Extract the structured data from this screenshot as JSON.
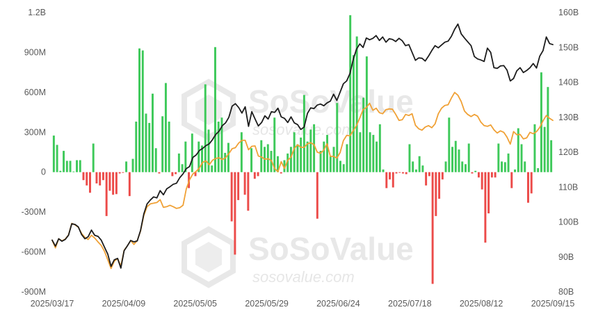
{
  "chart_data": {
    "type": "bar+line",
    "x_tick_labels": [
      "2025/03/17",
      "2025/04/09",
      "2025/05/05",
      "2025/05/29",
      "2025/06/24",
      "2025/07/18",
      "2025/08/12",
      "2025/09/15"
    ],
    "left_axis": {
      "ylim": [
        -900000000,
        1200000000
      ],
      "tick_labels": [
        "1.2B",
        "900M",
        "600M",
        "300M",
        "0",
        "-300M",
        "-600M",
        "-900M"
      ]
    },
    "right_axis": {
      "ylim": [
        80,
        160
      ],
      "tick_labels": [
        "160B",
        "150B",
        "140B",
        "130B",
        "120B",
        "110B",
        "100B",
        "90B",
        "80B"
      ]
    },
    "colors": {
      "positive_bar": "#3ec95a",
      "negative_bar": "#ec4b49",
      "line_black": "#1c1c1c",
      "line_orange": "#f0a136",
      "watermark": "#d6d6d6"
    },
    "watermark": {
      "brand": "SoSoValue",
      "url": "sosovalue.com"
    },
    "bars_millions": [
      275,
      205,
      10,
      160,
      85,
      85,
      5,
      90,
      90,
      -60,
      -100,
      -155,
      215,
      -85,
      -100,
      -60,
      -330,
      -140,
      -170,
      -165,
      -10,
      -5,
      80,
      -180,
      100,
      380,
      930,
      915,
      440,
      370,
      590,
      180,
      -10,
      420,
      670,
      380,
      -30,
      -15,
      140,
      60,
      230,
      -120,
      290,
      -30,
      230,
      200,
      660,
      320,
      50,
      940,
      380,
      410,
      145,
      220,
      -370,
      -620,
      -210,
      300,
      -170,
      -290,
      180,
      -50,
      -30,
      240,
      190,
      210,
      160,
      410,
      120,
      -10,
      90,
      140,
      190,
      300,
      210,
      260,
      580,
      230,
      320,
      360,
      -350,
      160,
      230,
      280,
      120,
      190,
      520,
      85,
      60,
      210,
      1180,
      880,
      1020,
      300,
      560,
      870,
      300,
      280,
      230,
      360,
      20,
      -120,
      -55,
      -115,
      -10,
      -5,
      -10,
      -15,
      210,
      80,
      20,
      120,
      50,
      -100,
      -30,
      -840,
      -330,
      -200,
      -55,
      80,
      410,
      190,
      235,
      170,
      80,
      60,
      215,
      -10,
      10,
      -40,
      -130,
      -530,
      -310,
      -40,
      -40,
      215,
      80,
      75,
      140,
      -120,
      20,
      330,
      210,
      80,
      -230,
      -160,
      360,
      30,
      750,
      340,
      640,
      240
    ],
    "series": [
      {
        "name": "",
        "color": "#1c1c1c",
        "unit": "B",
        "values": [
          94.8,
          93.1,
          95.2,
          94.5,
          95.0,
          96.2,
          99.5,
          99.3,
          98.6,
          96.4,
          95.2,
          95.8,
          97.7,
          96.2,
          95.9,
          94.8,
          92.8,
          90.8,
          87.3,
          89.2,
          89.6,
          86.8,
          91.8,
          93.2,
          94.7,
          94.3,
          94.6,
          97.6,
          102.3,
          105.2,
          106.3,
          107.2,
          106.9,
          109.0,
          107.8,
          109.5,
          110.1,
          110.8,
          111.1,
          112.7,
          113.8,
          115.3,
          115.9,
          118.5,
          119.2,
          120.5,
          121.1,
          121.9,
          122.4,
          123.6,
          125.1,
          126.0,
          127.6,
          128.4,
          130.0,
          133.2,
          133.9,
          132.8,
          131.2,
          133.0,
          127.4,
          131.6,
          129.5,
          127.5,
          128.5,
          130.4,
          129.5,
          131.6,
          131.4,
          132.6,
          130.1,
          129.7,
          128.5,
          130.1,
          128.4,
          127.9,
          126.5,
          127.2,
          131.1,
          132.7,
          132.5,
          133.5,
          133.8,
          133.3,
          134.1,
          134.6,
          136.6,
          134.8,
          137.2,
          139.6,
          140.4,
          142.5,
          146.5,
          149.5,
          151.0,
          150.0,
          152.7,
          152.2,
          152.6,
          153.4,
          152.0,
          153.0,
          151.5,
          152.5,
          152.3,
          151.7,
          152.6,
          151.9,
          150.5,
          150.8,
          148.6,
          146.3,
          147.0,
          146.9,
          146.1,
          147.5,
          149.1,
          150.5,
          149.9,
          150.7,
          151.5,
          151.8,
          153.2,
          155.2,
          156.7,
          153.9,
          152.7,
          151.6,
          150.5,
          147.4,
          146.7,
          146.4,
          146.0,
          149.8,
          148.6,
          144.2,
          144.0,
          144.7,
          144.8,
          143.5,
          140.4,
          141.1,
          143.3,
          144.2,
          142.8,
          143.4,
          144.2,
          145.4,
          144.1,
          147.5,
          149.1,
          153.0,
          151.1,
          150.8
        ]
      },
      {
        "name": "",
        "color": "#f0a136",
        "unit": "B",
        "values": [
          94.8,
          92.6,
          95.2,
          94.6,
          95.1,
          96.3,
          99.6,
          99.2,
          98.5,
          96.7,
          95.6,
          95.0,
          96.2,
          95.4,
          94.3,
          93.3,
          91.6,
          89.2,
          86.7,
          88.8,
          89.5,
          87.4,
          91.9,
          93.2,
          94.7,
          93.6,
          94.7,
          97.4,
          101.9,
          104.4,
          105.2,
          105.4,
          105.6,
          106.4,
          104.2,
          104.4,
          104.8,
          104.4,
          103.9,
          104.1,
          104.8,
          109.5,
          112.1,
          113.8,
          114.5,
          115.5,
          117.1,
          117.5,
          116.4,
          117.7,
          118.2,
          118.4,
          117.9,
          118.4,
          119.6,
          121.0,
          121.3,
          122.6,
          123.4,
          123.4,
          120.7,
          121.7,
          121.8,
          118.9,
          118.6,
          118.0,
          118.1,
          117.6,
          115.3,
          114.4,
          117.3,
          115.3,
          117.7,
          118.6,
          121.1,
          122.1,
          121.4,
          121.4,
          122.4,
          122.7,
          122.2,
          120.0,
          119.7,
          120.6,
          122.4,
          118.8,
          118.8,
          118.3,
          119.9,
          123.3,
          124.8,
          124.7,
          126.1,
          127.6,
          129.8,
          132.2,
          132.8,
          134.0,
          132.0,
          132.6,
          131.3,
          131.0,
          132.2,
          132.4,
          132.3,
          130.8,
          129.1,
          129.3,
          130.8,
          130.5,
          131.0,
          127.7,
          126.7,
          126.3,
          127.2,
          127.6,
          127.0,
          128.1,
          131.0,
          132.6,
          133.4,
          133.6,
          135.5,
          137.1,
          136.3,
          134.5,
          131.8,
          130.8,
          130.2,
          130.8,
          130.3,
          128.6,
          127.6,
          127.4,
          127.8,
          126.4,
          125.5,
          126.1,
          125.7,
          124.3,
          122.3,
          125.9,
          125.0,
          125.1,
          123.8,
          124.1,
          125.7,
          125.3,
          125.9,
          127.1,
          129.0,
          130.5,
          129.7,
          129.1
        ]
      }
    ]
  }
}
